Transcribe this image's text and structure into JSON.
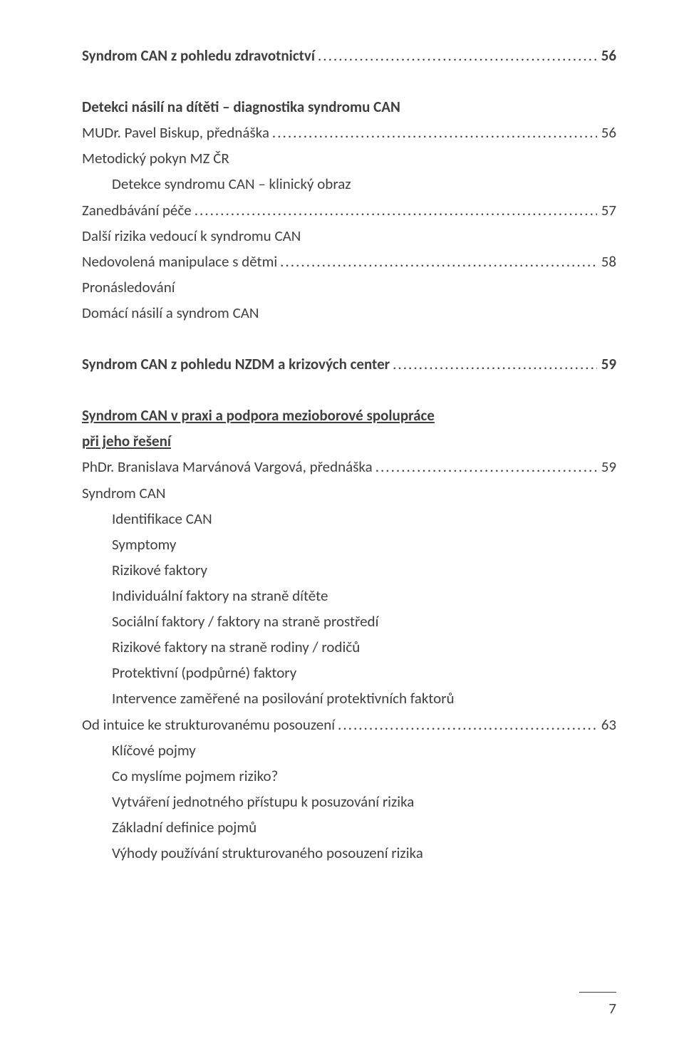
{
  "dotFill": ".......................................................................................................................................................................................",
  "lines": [
    {
      "kind": "toc",
      "bold": true,
      "label": "Syndrom CAN z pohledu zdravotnictví",
      "page": "56"
    },
    {
      "kind": "spacer"
    },
    {
      "kind": "plain",
      "bold": true,
      "label": "Detekci násilí na dítěti – diagnostika syndromu CAN"
    },
    {
      "kind": "toc",
      "label": "MUDr. Pavel Biskup, přednáška",
      "page": "56"
    },
    {
      "kind": "plain",
      "label": "Metodický pokyn MZ ČR"
    },
    {
      "kind": "plain",
      "indent": 1,
      "label": "Detekce syndromu CAN – klinický obraz"
    },
    {
      "kind": "toc",
      "label": "Zanedbávání péče",
      "page": "57"
    },
    {
      "kind": "plain",
      "label": "Další rizika vedoucí k syndromu CAN"
    },
    {
      "kind": "toc",
      "label": "Nedovolená manipulace s dětmi",
      "page": "58"
    },
    {
      "kind": "plain",
      "label": "Pronásledování"
    },
    {
      "kind": "plain",
      "label": "Domácí násilí a syndrom CAN"
    },
    {
      "kind": "spacer"
    },
    {
      "kind": "toc",
      "bold": true,
      "label": "Syndrom CAN z pohledu NZDM a krizových center",
      "page": "59"
    },
    {
      "kind": "spacer"
    },
    {
      "kind": "plain",
      "bold": true,
      "underline": true,
      "label": "Syndrom CAN v praxi a podpora mezioborové spolupráce"
    },
    {
      "kind": "plain",
      "bold": true,
      "underline": true,
      "label": "při jeho řešení"
    },
    {
      "kind": "toc",
      "label": "PhDr. Branislava Marvánová Vargová, přednáška",
      "page": "59"
    },
    {
      "kind": "plain",
      "label": "Syndrom CAN"
    },
    {
      "kind": "plain",
      "indent": 1,
      "label": "Identifikace CAN"
    },
    {
      "kind": "plain",
      "indent": 1,
      "label": "Symptomy"
    },
    {
      "kind": "plain",
      "indent": 1,
      "label": "Rizikové faktory"
    },
    {
      "kind": "plain",
      "indent": 1,
      "label": "Individuální faktory na straně dítěte"
    },
    {
      "kind": "plain",
      "indent": 1,
      "label": "Sociální faktory / faktory na straně prostředí"
    },
    {
      "kind": "plain",
      "indent": 1,
      "label": "Rizikové faktory na straně rodiny / rodičů"
    },
    {
      "kind": "plain",
      "indent": 1,
      "label": "Protektivní (podpůrné) faktory"
    },
    {
      "kind": "plain",
      "indent": 1,
      "label": "Intervence zaměřené na posilování protektivních faktorů"
    },
    {
      "kind": "toc",
      "label": "Od intuice ke strukturovanému posouzení",
      "page": "63"
    },
    {
      "kind": "plain",
      "indent": 1,
      "label": "Klíčové pojmy"
    },
    {
      "kind": "plain",
      "indent": 1,
      "label": "Co myslíme pojmem riziko?"
    },
    {
      "kind": "plain",
      "indent": 1,
      "label": "Vytváření jednotného přístupu k posuzování rizika"
    },
    {
      "kind": "plain",
      "indent": 1,
      "label": "Základní definice pojmů"
    },
    {
      "kind": "plain",
      "indent": 1,
      "label": "Výhody používání strukturovaného posouzení rizika"
    }
  ],
  "pageNumber": "7"
}
